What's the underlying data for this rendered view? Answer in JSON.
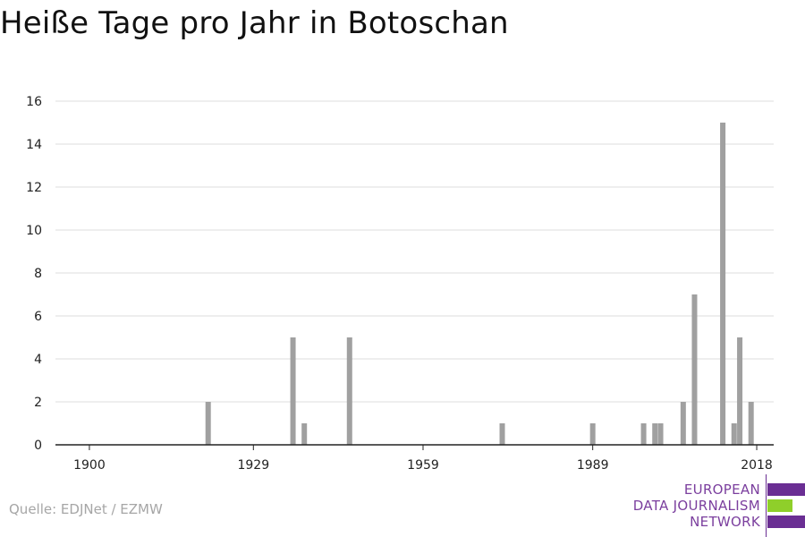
{
  "title": "Heiße Tage pro Jahr in Botoschan",
  "source": "Quelle: EDJNet / EZMW",
  "logo": {
    "line1": "EUROPEAN",
    "line2": "DATA JOURNALISM",
    "line3": "NETWORK",
    "purple": "#6a2e93",
    "green": "#8fcf2a"
  },
  "colors": {
    "bar": "#a0a0a0",
    "grid": "#dddddd",
    "axis": "#222222"
  },
  "chart_data": {
    "type": "bar",
    "title": "Heiße Tage pro Jahr in Botoschan",
    "xlabel": "",
    "ylabel": "",
    "xlim": [
      1894,
      2021
    ],
    "ylim": [
      0,
      16
    ],
    "xticks": [
      1900,
      1929,
      1959,
      1989,
      2018
    ],
    "yticks": [
      0,
      2,
      4,
      6,
      8,
      10,
      12,
      14,
      16
    ],
    "grid": true,
    "x": [
      1921,
      1936,
      1938,
      1946,
      1973,
      1989,
      1998,
      2000,
      2001,
      2005,
      2007,
      2012,
      2014,
      2015,
      2017
    ],
    "values": [
      2,
      5,
      1,
      5,
      1,
      1,
      1,
      1,
      1,
      2,
      7,
      15,
      1,
      5,
      2
    ]
  }
}
